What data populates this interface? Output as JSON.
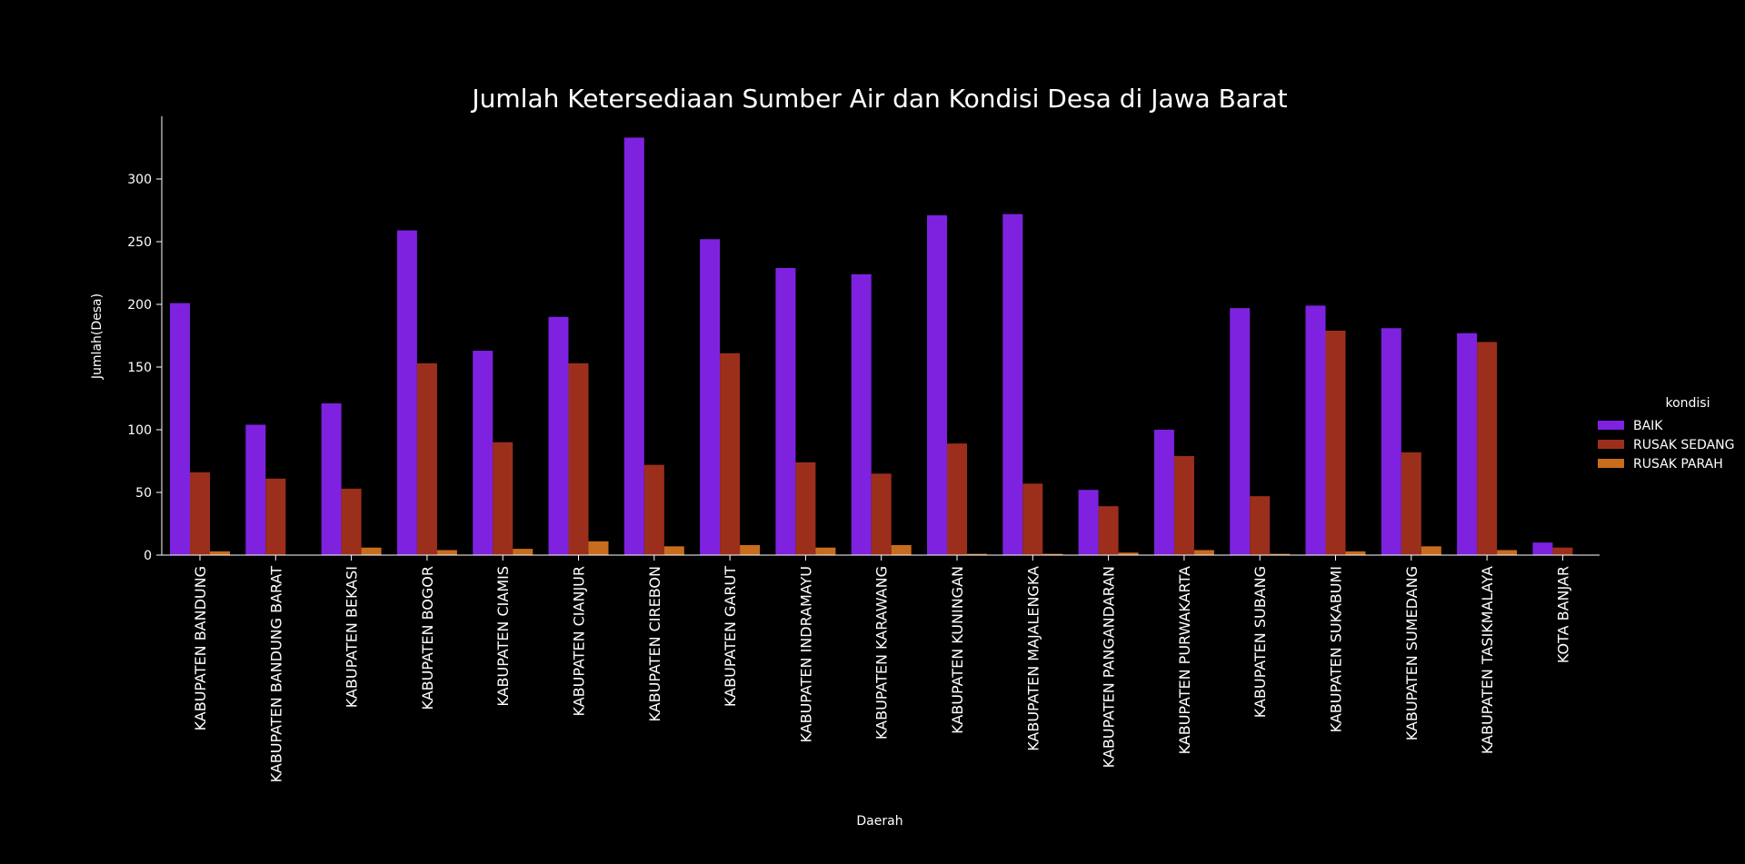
{
  "chart_data": {
    "type": "bar",
    "title": "Jumlah Ketersediaan Sumber Air dan Kondisi Desa di Jawa Barat",
    "xlabel": "Daerah",
    "ylabel": "Jumlah(Desa)",
    "ylim": [
      0,
      350
    ],
    "yticks": [
      0,
      50,
      100,
      150,
      200,
      250,
      300
    ],
    "grid": false,
    "legend": {
      "title": "kondisi",
      "placement": "right"
    },
    "categories": [
      "KABUPATEN BANDUNG",
      "KABUPATEN BANDUNG BARAT",
      "KABUPATEN BEKASI",
      "KABUPATEN BOGOR",
      "KABUPATEN CIAMIS",
      "KABUPATEN CIANJUR",
      "KABUPATEN CIREBON",
      "KABUPATEN GARUT",
      "KABUPATEN INDRAMAYU",
      "KABUPATEN KARAWANG",
      "KABUPATEN KUNINGAN",
      "KABUPATEN MAJALENGKA",
      "KABUPATEN PANGANDARAN",
      "KABUPATEN PURWAKARTA",
      "KABUPATEN SUBANG",
      "KABUPATEN SUKABUMI",
      "KABUPATEN SUMEDANG",
      "KABUPATEN TASIKMALAYA",
      "KOTA BANJAR"
    ],
    "series": [
      {
        "name": "BAIK",
        "color": "#7e22e0",
        "values": [
          201,
          104,
          121,
          259,
          163,
          190,
          333,
          252,
          229,
          224,
          271,
          272,
          52,
          100,
          197,
          199,
          181,
          177,
          10
        ]
      },
      {
        "name": "RUSAK SEDANG",
        "color": "#9c2f1b",
        "values": [
          66,
          61,
          53,
          153,
          90,
          153,
          72,
          161,
          74,
          65,
          89,
          57,
          39,
          79,
          47,
          179,
          82,
          170,
          6
        ]
      },
      {
        "name": "RUSAK PARAH",
        "color": "#c86d1e",
        "values": [
          3,
          0,
          6,
          4,
          5,
          11,
          7,
          8,
          6,
          8,
          1,
          1,
          2,
          4,
          1,
          3,
          7,
          4,
          0
        ]
      }
    ]
  }
}
